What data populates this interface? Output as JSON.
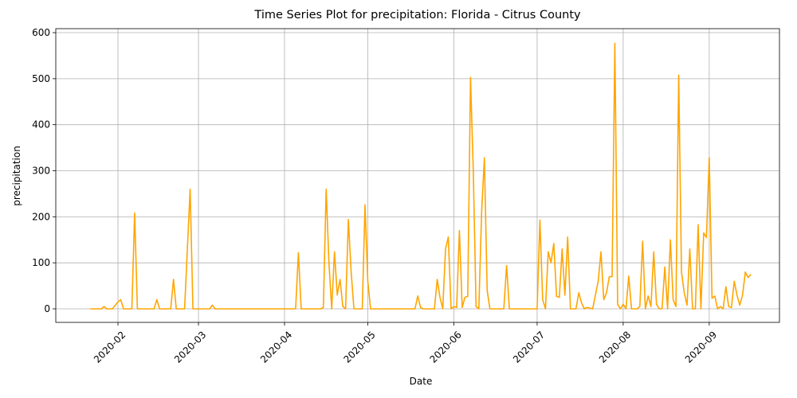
{
  "chart_data": {
    "type": "line",
    "title": "Time Series Plot for precipitation: Florida - Citrus County",
    "xlabel": "Date",
    "ylabel": "precipitation",
    "color": "#ffa500",
    "grid": true,
    "x": [
      21,
      25,
      26,
      27,
      29,
      31,
      32,
      33,
      36,
      37,
      38,
      44,
      45,
      46,
      50,
      51,
      52,
      55,
      57,
      58,
      64,
      65,
      66,
      95,
      96,
      97,
      104,
      105,
      106,
      107,
      108,
      109,
      110,
      111,
      112,
      113,
      114,
      115,
      116,
      119,
      120,
      121,
      122,
      138,
      139,
      140,
      141,
      145,
      146,
      147,
      148,
      149,
      150,
      151,
      152,
      153,
      154,
      155,
      156,
      157,
      158,
      159,
      160,
      161,
      162,
      163,
      164,
      165,
      170,
      171,
      172,
      182,
      183,
      184,
      185,
      186,
      187,
      188,
      189,
      190,
      191,
      192,
      193,
      194,
      196,
      197,
      198,
      199,
      200,
      202,
      204,
      205,
      206,
      207,
      208,
      209,
      210,
      211,
      212,
      213,
      214,
      215,
      216,
      218,
      219,
      220,
      221,
      222,
      223,
      224,
      225,
      226,
      227,
      228,
      229,
      230,
      231,
      232,
      233,
      234,
      235,
      236,
      237,
      238,
      239,
      240,
      241,
      242,
      243,
      244,
      245,
      246,
      247,
      248,
      249,
      250,
      251,
      252,
      253,
      254,
      255,
      256,
      257,
      258,
      259
    ],
    "values": [
      0,
      0,
      5,
      0,
      0,
      15,
      20,
      0,
      0,
      208,
      0,
      0,
      20,
      0,
      0,
      64,
      0,
      0,
      260,
      0,
      0,
      8,
      0,
      0,
      122,
      0,
      0,
      3,
      260,
      100,
      0,
      124,
      30,
      64,
      5,
      0,
      194,
      80,
      0,
      0,
      226,
      60,
      0,
      0,
      28,
      3,
      0,
      0,
      64,
      25,
      0,
      130,
      156,
      0,
      5,
      3,
      170,
      3,
      25,
      27,
      503,
      300,
      5,
      0,
      210,
      328,
      40,
      0,
      0,
      94,
      0,
      0,
      193,
      20,
      0,
      124,
      100,
      142,
      27,
      25,
      130,
      30,
      156,
      0,
      0,
      35,
      13,
      0,
      3,
      0,
      60,
      124,
      20,
      35,
      70,
      70,
      577,
      10,
      0,
      10,
      0,
      71,
      0,
      0,
      5,
      147,
      0,
      28,
      5,
      124,
      10,
      0,
      0,
      91,
      0,
      150,
      20,
      5,
      508,
      80,
      35,
      8,
      130,
      0,
      0,
      183,
      0,
      165,
      155,
      328,
      23,
      28,
      0,
      5,
      0,
      48,
      5,
      3,
      60,
      30,
      8,
      30,
      80,
      68,
      75
    ],
    "xlim": [
      8.6,
      269.3
    ],
    "xticks": [
      {
        "value": 31,
        "label": "2020-02"
      },
      {
        "value": 60,
        "label": "2020-03"
      },
      {
        "value": 91,
        "label": "2020-04"
      },
      {
        "value": 121,
        "label": "2020-05"
      },
      {
        "value": 152,
        "label": "2020-06"
      },
      {
        "value": 182,
        "label": "2020-07"
      },
      {
        "value": 213,
        "label": "2020-08"
      },
      {
        "value": 244,
        "label": "2020-09"
      }
    ],
    "ylim": [
      -29.4,
      608.7
    ],
    "yticks": [
      0,
      100,
      200,
      300,
      400,
      500,
      600
    ]
  }
}
